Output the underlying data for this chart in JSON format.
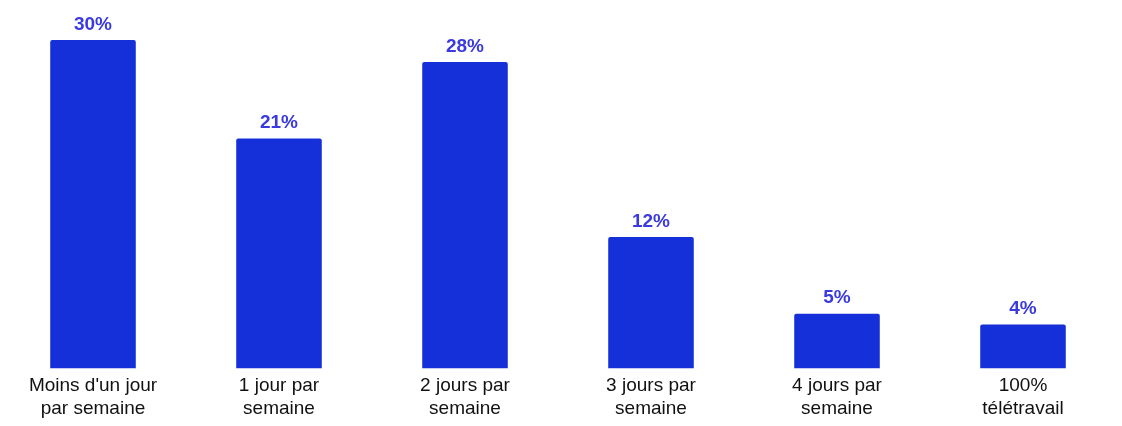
{
  "chart_data": {
    "type": "bar",
    "categories": [
      "Moins d'un jour par semaine",
      "1 jour par semaine",
      "2 jours par semaine",
      "3 jours par semaine",
      "4 jours par semaine",
      "100% télétravail"
    ],
    "values": [
      30,
      21,
      28,
      12,
      5,
      4
    ],
    "value_labels": [
      "30%",
      "21%",
      "28%",
      "12%",
      "5%",
      "4%"
    ],
    "color": "#1530d8",
    "grid": false,
    "legend": false
  }
}
